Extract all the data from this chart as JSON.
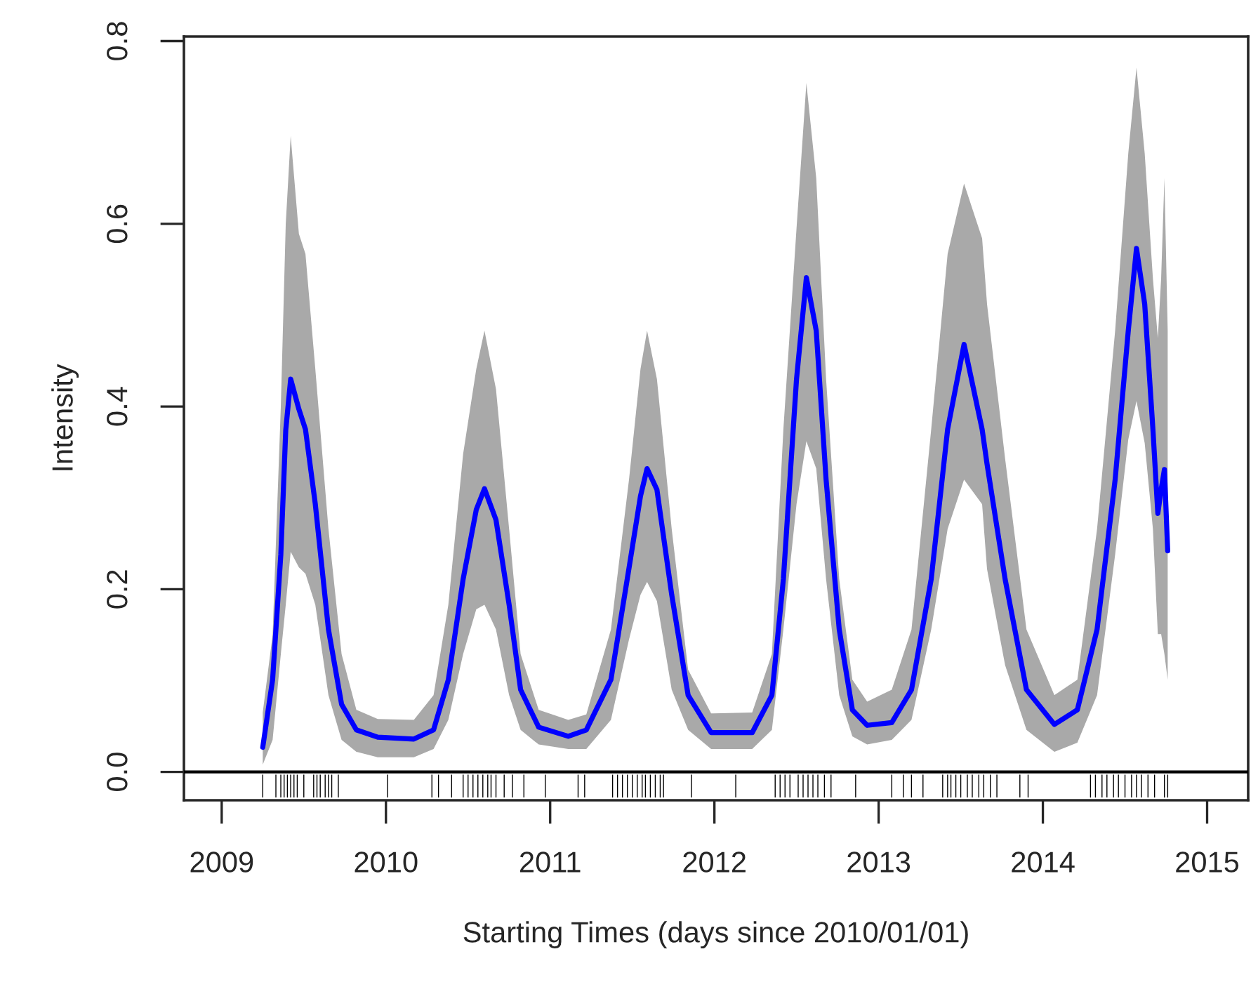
{
  "chart_data": {
    "type": "line",
    "xlabel": "Starting Times (days since 2010/01/01)",
    "ylabel": "Intensity",
    "xlim": [
      2008.77,
      2015.25
    ],
    "xticks": [
      2009,
      2010,
      2011,
      2012,
      2013,
      2014,
      2015
    ],
    "ylim": [
      -0.031,
      0.805
    ],
    "yticks": [
      {
        "value": 0,
        "label": "0.0"
      },
      0.2,
      0.4,
      0.6,
      0.8
    ],
    "grid": false,
    "legend": false,
    "ref_lines": [
      {
        "axis": "y",
        "value": 0,
        "color": "#000000"
      }
    ],
    "series": [
      {
        "color": "#0000ff",
        "line_style": "solid",
        "x": [
          2009.25,
          2009.31,
          2009.36,
          2009.39,
          2009.42,
          2009.47,
          2009.51,
          2009.57,
          2009.65,
          2009.73,
          2009.82,
          2009.95,
          2010.17,
          2010.29,
          2010.38,
          2010.47,
          2010.55,
          2010.6,
          2010.67,
          2010.75,
          2010.82,
          2010.93,
          2011.11,
          2011.22,
          2011.37,
          2011.48,
          2011.55,
          2011.59,
          2011.65,
          2011.74,
          2011.84,
          2011.98,
          2012.23,
          2012.35,
          2012.42,
          2012.5,
          2012.56,
          2012.62,
          2012.68,
          2012.76,
          2012.84,
          2012.93,
          2013.08,
          2013.2,
          2013.32,
          2013.42,
          2013.52,
          2013.63,
          2013.66,
          2013.77,
          2013.9,
          2014.07,
          2014.21,
          2014.33,
          2014.44,
          2014.52,
          2014.57,
          2014.62,
          2014.67,
          2014.7,
          2014.72,
          2014.74,
          2014.76
        ],
        "values": [
          0.027,
          0.101,
          0.238,
          0.374,
          0.43,
          0.397,
          0.375,
          0.293,
          0.156,
          0.074,
          0.046,
          0.038,
          0.036,
          0.046,
          0.101,
          0.211,
          0.287,
          0.31,
          0.276,
          0.183,
          0.09,
          0.049,
          0.039,
          0.046,
          0.101,
          0.223,
          0.302,
          0.332,
          0.309,
          0.194,
          0.084,
          0.043,
          0.043,
          0.084,
          0.211,
          0.43,
          0.541,
          0.483,
          0.32,
          0.156,
          0.068,
          0.051,
          0.054,
          0.09,
          0.211,
          0.375,
          0.468,
          0.375,
          0.337,
          0.211,
          0.09,
          0.052,
          0.068,
          0.156,
          0.32,
          0.483,
          0.573,
          0.512,
          0.375,
          0.283,
          0.309,
          0.331,
          0.242
        ],
        "lower": [
          0.008,
          0.035,
          0.129,
          0.183,
          0.241,
          0.224,
          0.217,
          0.183,
          0.084,
          0.035,
          0.022,
          0.016,
          0.016,
          0.025,
          0.057,
          0.129,
          0.178,
          0.183,
          0.156,
          0.084,
          0.046,
          0.03,
          0.025,
          0.025,
          0.057,
          0.145,
          0.194,
          0.208,
          0.187,
          0.09,
          0.046,
          0.025,
          0.025,
          0.046,
          0.156,
          0.293,
          0.362,
          0.332,
          0.211,
          0.084,
          0.039,
          0.03,
          0.035,
          0.057,
          0.156,
          0.266,
          0.32,
          0.293,
          0.222,
          0.117,
          0.046,
          0.022,
          0.032,
          0.084,
          0.238,
          0.364,
          0.406,
          0.36,
          0.266,
          0.151,
          0.151,
          0.129,
          0.101
        ],
        "upper": [
          0.065,
          0.15,
          0.4,
          0.6,
          0.696,
          0.589,
          0.567,
          0.441,
          0.266,
          0.129,
          0.068,
          0.058,
          0.057,
          0.084,
          0.183,
          0.348,
          0.441,
          0.483,
          0.419,
          0.266,
          0.129,
          0.068,
          0.057,
          0.063,
          0.156,
          0.32,
          0.441,
          0.483,
          0.43,
          0.266,
          0.112,
          0.064,
          0.065,
          0.129,
          0.375,
          0.595,
          0.754,
          0.65,
          0.43,
          0.211,
          0.101,
          0.077,
          0.09,
          0.156,
          0.375,
          0.567,
          0.644,
          0.584,
          0.512,
          0.343,
          0.156,
          0.084,
          0.101,
          0.266,
          0.483,
          0.677,
          0.771,
          0.677,
          0.54,
          0.475,
          0.54,
          0.65,
          0.483
        ]
      },
      {
        "type": "bar",
        "color": "#000000",
        "base": [
          -0.028,
          -0.028,
          -0.028,
          -0.028,
          -0.028,
          -0.028,
          -0.028,
          -0.028,
          -0.028,
          -0.028,
          -0.028,
          -0.028,
          -0.028,
          -0.028,
          -0.028,
          -0.028,
          -0.028,
          -0.028,
          -0.028,
          -0.028,
          -0.028,
          -0.028,
          -0.028,
          -0.028,
          -0.028,
          -0.028,
          -0.028,
          -0.028,
          -0.028,
          -0.028,
          -0.028,
          -0.028,
          -0.028,
          -0.028,
          -0.028,
          -0.028,
          -0.028,
          -0.028,
          -0.028,
          -0.028,
          -0.028,
          -0.028,
          -0.028,
          -0.028,
          -0.028,
          -0.028,
          -0.028,
          -0.028,
          -0.028,
          -0.028,
          -0.028,
          -0.028,
          -0.028,
          -0.028,
          -0.028,
          -0.028,
          -0.028,
          -0.028,
          -0.028,
          -0.028,
          -0.028,
          -0.028,
          -0.028,
          -0.028,
          -0.028,
          -0.028,
          -0.028,
          -0.028,
          -0.028,
          -0.028,
          -0.028,
          -0.028,
          -0.028,
          -0.028,
          -0.028,
          -0.028,
          -0.028,
          -0.028,
          -0.028,
          -0.028,
          -0.028,
          -0.028,
          -0.028,
          -0.028,
          -0.028,
          -0.028,
          -0.028,
          -0.028,
          -0.028,
          -0.028,
          -0.028
        ],
        "x": [
          2009.25,
          2009.33,
          2009.36,
          2009.38,
          2009.4,
          2009.42,
          2009.44,
          2009.46,
          2009.5,
          2009.56,
          2009.58,
          2009.6,
          2009.63,
          2009.65,
          2009.67,
          2009.71,
          2010.01,
          2010.28,
          2010.32,
          2010.4,
          2010.47,
          2010.5,
          2010.53,
          2010.56,
          2010.59,
          2010.62,
          2010.64,
          2010.67,
          2010.72,
          2010.77,
          2010.84,
          2010.97,
          2011.17,
          2011.21,
          2011.38,
          2011.41,
          2011.44,
          2011.47,
          2011.5,
          2011.53,
          2011.56,
          2011.58,
          2011.61,
          2011.64,
          2011.67,
          2011.69,
          2011.86,
          2012.13,
          2012.37,
          2012.4,
          2012.43,
          2012.46,
          2012.51,
          2012.54,
          2012.57,
          2012.6,
          2012.63,
          2012.67,
          2012.71,
          2012.86,
          2013.08,
          2013.15,
          2013.2,
          2013.27,
          2013.39,
          2013.42,
          2013.44,
          2013.47,
          2013.5,
          2013.54,
          2013.57,
          2013.61,
          2013.64,
          2013.68,
          2013.72,
          2013.86,
          2013.91,
          2014.29,
          2014.32,
          2014.36,
          2014.39,
          2014.43,
          2014.46,
          2014.5,
          2014.54,
          2014.57,
          2014.6,
          2014.64,
          2014.68,
          2014.74,
          2014.76
        ],
        "values": [
          0.025,
          0.025,
          0.025,
          0.025,
          0.025,
          0.025,
          0.025,
          0.025,
          0.025,
          0.025,
          0.025,
          0.025,
          0.025,
          0.025,
          0.025,
          0.025,
          0.025,
          0.025,
          0.025,
          0.025,
          0.025,
          0.025,
          0.025,
          0.025,
          0.025,
          0.025,
          0.025,
          0.025,
          0.025,
          0.025,
          0.025,
          0.025,
          0.025,
          0.025,
          0.025,
          0.025,
          0.025,
          0.025,
          0.025,
          0.025,
          0.025,
          0.025,
          0.025,
          0.025,
          0.025,
          0.025,
          0.025,
          0.025,
          0.025,
          0.025,
          0.025,
          0.025,
          0.025,
          0.025,
          0.025,
          0.025,
          0.025,
          0.025,
          0.025,
          0.025,
          0.025,
          0.025,
          0.025,
          0.025,
          0.025,
          0.025,
          0.025,
          0.025,
          0.025,
          0.025,
          0.025,
          0.025,
          0.025,
          0.025,
          0.025,
          0.025,
          0.025,
          0.025,
          0.025,
          0.025,
          0.025,
          0.025,
          0.025,
          0.025,
          0.025,
          0.025,
          0.025,
          0.025,
          0.025,
          0.025,
          0.025
        ]
      }
    ]
  }
}
